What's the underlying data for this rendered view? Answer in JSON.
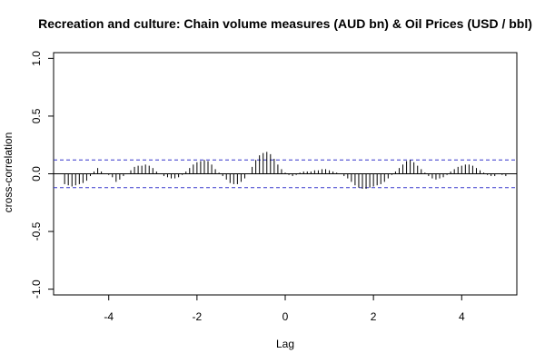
{
  "chart_data": {
    "type": "bar",
    "title": "Recreation and culture: Chain volume measures (AUD bn) & Oil Prices (USD / bbl)",
    "xlabel": "Lag",
    "ylabel": "cross-correlation",
    "xlim": [
      -5.25,
      5.25
    ],
    "ylim": [
      -1.05,
      1.05
    ],
    "x_ticks": [
      {
        "value": -4,
        "label": "-4"
      },
      {
        "value": -2,
        "label": "-2"
      },
      {
        "value": 0,
        "label": "0"
      },
      {
        "value": 2,
        "label": "2"
      },
      {
        "value": 4,
        "label": "4"
      }
    ],
    "y_ticks": [
      {
        "value": -1,
        "label": "-1.0"
      },
      {
        "value": -0.5,
        "label": "-0.5"
      },
      {
        "value": 0,
        "label": "0.0"
      },
      {
        "value": 0.5,
        "label": "0.5"
      },
      {
        "value": 1,
        "label": "1.0"
      }
    ],
    "confidence_limit": 0.12,
    "lag_step": 0.0833333,
    "values": [
      -0.09,
      -0.1,
      -0.11,
      -0.1,
      -0.09,
      -0.08,
      -0.06,
      -0.02,
      0.02,
      0.05,
      0.02,
      0.0,
      -0.01,
      -0.03,
      -0.07,
      -0.05,
      -0.02,
      0.0,
      0.03,
      0.06,
      0.07,
      0.07,
      0.08,
      0.07,
      0.05,
      0.02,
      0.0,
      -0.02,
      -0.03,
      -0.04,
      -0.04,
      -0.03,
      -0.01,
      0.02,
      0.05,
      0.08,
      0.1,
      0.11,
      0.12,
      0.11,
      0.08,
      0.04,
      0.01,
      -0.02,
      -0.05,
      -0.08,
      -0.09,
      -0.09,
      -0.07,
      -0.04,
      0.0,
      0.06,
      0.12,
      0.16,
      0.18,
      0.19,
      0.17,
      0.13,
      0.08,
      0.04,
      0.01,
      -0.01,
      -0.02,
      -0.01,
      0.01,
      0.02,
      0.02,
      0.02,
      0.03,
      0.03,
      0.04,
      0.04,
      0.03,
      0.02,
      0.01,
      0.0,
      -0.02,
      -0.04,
      -0.07,
      -0.1,
      -0.12,
      -0.13,
      -0.13,
      -0.12,
      -0.11,
      -0.1,
      -0.09,
      -0.07,
      -0.04,
      -0.01,
      0.02,
      0.05,
      0.08,
      0.11,
      0.12,
      0.1,
      0.07,
      0.04,
      0.01,
      -0.02,
      -0.04,
      -0.05,
      -0.04,
      -0.03,
      -0.01,
      0.02,
      0.04,
      0.06,
      0.07,
      0.08,
      0.08,
      0.07,
      0.05,
      0.03,
      0.01,
      -0.01,
      -0.02,
      -0.02,
      0.0,
      -0.01,
      -0.02
    ],
    "grid": false,
    "legend": "none"
  },
  "colors": {
    "bars": "#000000",
    "confidence_lines": "#3333cc",
    "zero_line": "#000000",
    "frame": "#000000"
  }
}
